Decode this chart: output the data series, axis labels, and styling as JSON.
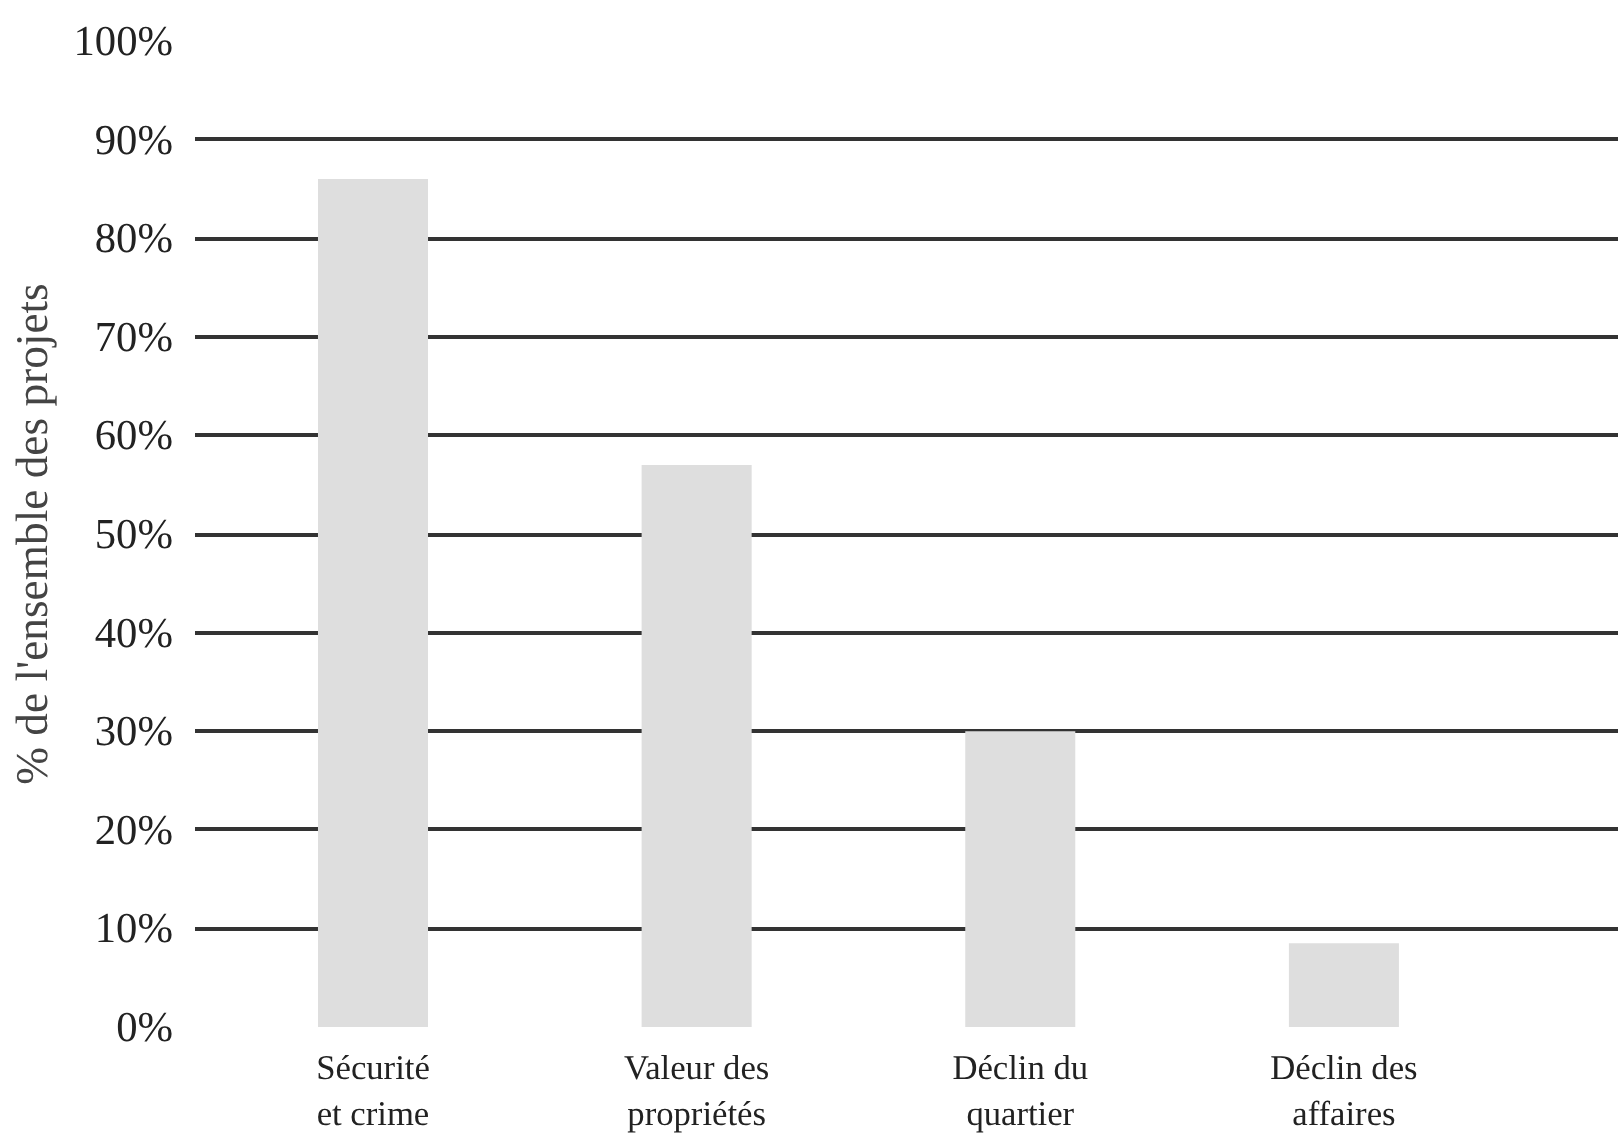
{
  "chart_data": {
    "type": "bar",
    "ylabel": "% de l'ensemble des projets",
    "categories": [
      "Sécurité\net crime",
      "Valeur des\npropriétés",
      "Déclin du\nquartier",
      "Déclin des\naffaires"
    ],
    "values": [
      86,
      57,
      30,
      8.5
    ],
    "color": "#dedede",
    "ylim": [
      0,
      100
    ],
    "yticks": [
      {
        "value": 0,
        "label": "0%"
      },
      {
        "value": 10,
        "label": "10%"
      },
      {
        "value": 20,
        "label": "20%"
      },
      {
        "value": 30,
        "label": "30%"
      },
      {
        "value": 40,
        "label": "40%"
      },
      {
        "value": 50,
        "label": "50%"
      },
      {
        "value": 60,
        "label": "60%"
      },
      {
        "value": 70,
        "label": "70%"
      },
      {
        "value": 80,
        "label": "80%"
      },
      {
        "value": 90,
        "label": "90%"
      },
      {
        "value": 100,
        "label": "100%"
      }
    ],
    "grid": "y"
  }
}
